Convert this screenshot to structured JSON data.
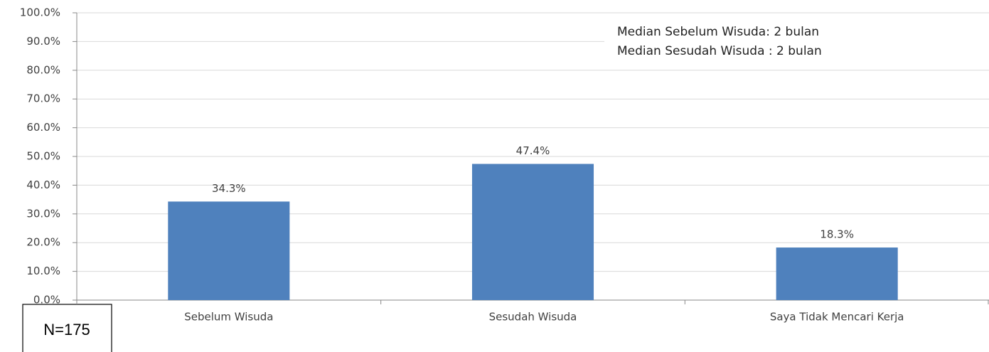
{
  "chart_data": {
    "type": "bar",
    "categories": [
      "Sebelum Wisuda",
      "Sesudah Wisuda",
      "Saya Tidak Mencari Kerja"
    ],
    "values": [
      34.3,
      47.4,
      18.3
    ],
    "value_labels": [
      "34.3%",
      "47.4%",
      "18.3%"
    ],
    "color": "#4f81bd",
    "ylim": [
      0,
      100
    ],
    "yticks": [
      {
        "value": 0,
        "label": "0.0%"
      },
      {
        "value": 10,
        "label": "10.0%"
      },
      {
        "value": 20,
        "label": "20.0%"
      },
      {
        "value": 30,
        "label": "30.0%"
      },
      {
        "value": 40,
        "label": "40.0%"
      },
      {
        "value": 50,
        "label": "50.0%"
      },
      {
        "value": 60,
        "label": "60.0%"
      },
      {
        "value": 70,
        "label": "70.0%"
      },
      {
        "value": 80,
        "label": "80.0%"
      },
      {
        "value": 90,
        "label": "90.0%"
      },
      {
        "value": 100,
        "label": "100.0%"
      }
    ],
    "grid": true,
    "annotations": [
      "Median Sebelum Wisuda: 2 bulan",
      "Median Sesudah Wisuda : 2 bulan",
      "N=175"
    ]
  }
}
